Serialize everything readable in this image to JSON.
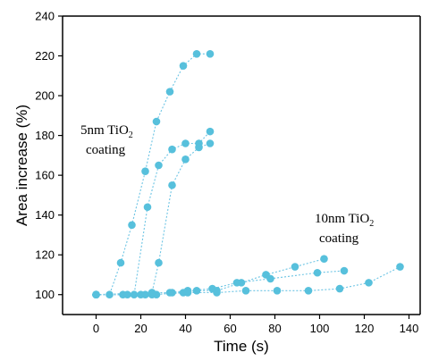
{
  "chart_data": {
    "type": "scatter",
    "xlabel": "Time (s)",
    "ylabel": "Area increase (%)",
    "xlim": [
      -15,
      145
    ],
    "ylim": [
      90,
      240
    ],
    "xticks": [
      0,
      20,
      40,
      60,
      80,
      100,
      120,
      140
    ],
    "yticks": [
      100,
      120,
      140,
      160,
      180,
      200,
      220,
      240
    ],
    "grid": false,
    "point_color": "#57c0dc",
    "line_color": "#6cc4e4",
    "annotations": [
      {
        "text_main": "5nm TiO",
        "text_sub": "2",
        "text_line2": "coating"
      },
      {
        "text_main": "10nm TiO",
        "text_sub": "2",
        "text_line2": "coating"
      }
    ],
    "series": [
      {
        "values": [
          [
            0,
            100
          ],
          [
            6,
            100
          ],
          [
            11,
            116
          ],
          [
            16,
            135
          ],
          [
            22,
            162
          ],
          [
            27,
            187
          ],
          [
            33,
            202
          ],
          [
            39,
            215
          ],
          [
            45,
            221
          ],
          [
            51,
            221
          ]
        ]
      },
      {
        "values": [
          [
            0,
            100
          ],
          [
            12,
            100
          ],
          [
            17,
            100
          ],
          [
            23,
            144
          ],
          [
            28,
            165
          ],
          [
            34,
            173
          ],
          [
            40,
            176
          ],
          [
            46,
            176
          ],
          [
            51,
            182
          ]
        ]
      },
      {
        "values": [
          [
            0,
            100
          ],
          [
            14,
            100
          ],
          [
            20,
            100
          ],
          [
            25,
            101
          ],
          [
            28,
            116
          ],
          [
            34,
            155
          ],
          [
            40,
            168
          ],
          [
            46,
            174
          ],
          [
            51,
            176
          ]
        ]
      },
      {
        "values": [
          [
            0,
            100
          ],
          [
            22,
            100
          ],
          [
            27,
            100
          ],
          [
            34,
            101
          ],
          [
            39,
            101
          ],
          [
            45,
            102
          ],
          [
            54,
            102
          ],
          [
            65,
            106
          ],
          [
            76,
            110
          ],
          [
            89,
            114
          ],
          [
            102,
            118
          ]
        ]
      },
      {
        "values": [
          [
            0,
            100
          ],
          [
            25,
            101
          ],
          [
            33,
            101
          ],
          [
            41,
            102
          ],
          [
            52,
            103
          ],
          [
            63,
            106
          ],
          [
            78,
            108
          ],
          [
            99,
            111
          ],
          [
            111,
            112
          ]
        ]
      },
      {
        "values": [
          [
            0,
            100
          ],
          [
            25,
            100
          ],
          [
            41,
            101
          ],
          [
            54,
            101
          ],
          [
            67,
            102
          ],
          [
            81,
            102
          ],
          [
            95,
            102
          ],
          [
            109,
            103
          ],
          [
            122,
            106
          ],
          [
            136,
            114
          ]
        ]
      }
    ]
  }
}
